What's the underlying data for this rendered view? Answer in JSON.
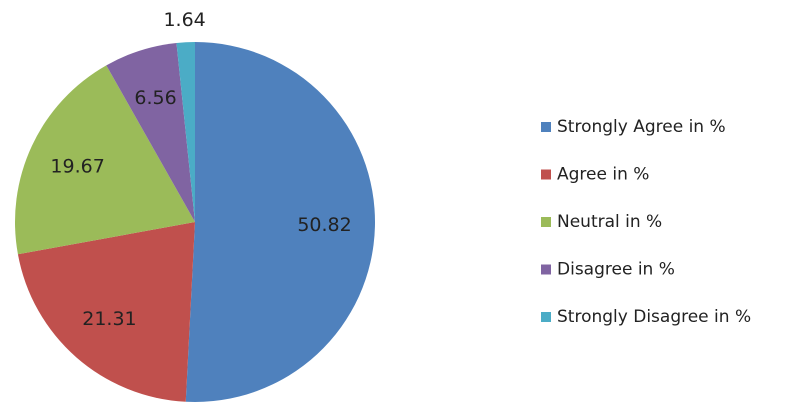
{
  "chart_data": {
    "type": "pie",
    "categories": [
      "Strongly Agree in %",
      "Agree in %",
      "Neutral in %",
      "Disagree in %",
      "Strongly Disagree in %"
    ],
    "values": [
      50.82,
      21.31,
      19.67,
      6.56,
      1.64
    ],
    "colors": [
      "#4f81bd",
      "#c0504d",
      "#9bbb59",
      "#8064a2",
      "#4bacc6"
    ],
    "legend": "right"
  }
}
